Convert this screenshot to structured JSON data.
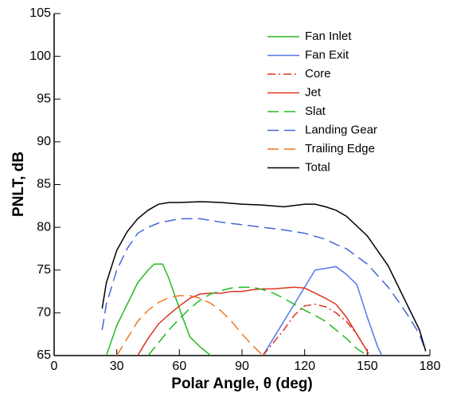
{
  "chart_data": {
    "type": "line",
    "xlabel": "Polar Angle, θ (deg)",
    "ylabel": "PNLT, dB",
    "xlim": [
      0,
      180
    ],
    "ylim": [
      65,
      105
    ],
    "xticks": [
      0,
      30,
      60,
      90,
      120,
      150,
      180
    ],
    "yticks": [
      65,
      70,
      75,
      80,
      85,
      90,
      95,
      100,
      105
    ],
    "legend": "upper right",
    "series": [
      {
        "name": "Fan Inlet",
        "color": "#22bb22",
        "dash": "solid",
        "x": [
          25,
          30,
          35,
          40,
          45,
          48,
          52,
          55,
          60,
          65,
          70,
          75
        ],
        "values": [
          65,
          68.5,
          71,
          73.5,
          75,
          75.7,
          75.7,
          74,
          70.5,
          67.2,
          66,
          65
        ]
      },
      {
        "name": "Fan Exit",
        "color": "#5577ee",
        "dash": "solid",
        "x": [
          100,
          105,
          110,
          115,
          120,
          125,
          130,
          135,
          140,
          145,
          150,
          155,
          157
        ],
        "values": [
          65,
          67,
          69,
          71,
          73,
          75,
          75.2,
          75.4,
          74.5,
          73.3,
          69.5,
          66,
          65
        ]
      },
      {
        "name": "Core",
        "color": "#dd3322",
        "dash": "dashdot",
        "x": [
          100,
          105,
          110,
          115,
          120,
          125,
          130,
          135,
          140,
          145,
          150,
          151
        ],
        "values": [
          65,
          66.5,
          68,
          69.7,
          70.8,
          71,
          70.7,
          70,
          69,
          67.5,
          65.5,
          65
        ]
      },
      {
        "name": "Jet",
        "color": "#dd3322",
        "dash": "solid",
        "x": [
          40,
          45,
          50,
          55,
          60,
          65,
          70,
          75,
          80,
          85,
          90,
          95,
          100,
          105,
          110,
          115,
          120,
          125,
          130,
          135,
          140,
          145,
          150
        ],
        "values": [
          65,
          67,
          68.7,
          69.8,
          70.8,
          71.7,
          72.2,
          72.3,
          72.3,
          72.5,
          72.5,
          72.7,
          72.8,
          72.8,
          72.9,
          73,
          72.9,
          72.3,
          71.7,
          71,
          69.5,
          67.5,
          65.5
        ]
      },
      {
        "name": "Slat",
        "color": "#22bb22",
        "dash": "dashed",
        "x": [
          45,
          50,
          55,
          60,
          65,
          70,
          75,
          80,
          85,
          90,
          95,
          100,
          105,
          110,
          115,
          120,
          125,
          130,
          135,
          140,
          145,
          150
        ],
        "values": [
          65,
          66.5,
          68,
          69.3,
          70.5,
          71.5,
          72.2,
          72.6,
          72.9,
          73,
          73,
          72.7,
          72.3,
          71.7,
          71,
          70.3,
          69.7,
          69,
          68,
          67,
          65.8,
          65
        ]
      },
      {
        "name": "Landing Gear",
        "color": "#4466dd",
        "dash": "dashed",
        "x": [
          23,
          25,
          30,
          35,
          40,
          45,
          50,
          60,
          70,
          80,
          90,
          100,
          110,
          120,
          130,
          135,
          140,
          150,
          160,
          165,
          170,
          175,
          178
        ],
        "values": [
          68,
          71,
          75,
          77.5,
          79.3,
          80,
          80.5,
          81,
          81,
          80.6,
          80.3,
          80,
          79.7,
          79.3,
          78.6,
          78,
          77.5,
          75.7,
          73,
          71.3,
          69.5,
          67.5,
          65.5
        ]
      },
      {
        "name": "Trailing Edge",
        "color": "#ee7722",
        "dash": "dashed",
        "x": [
          30,
          35,
          40,
          45,
          50,
          55,
          60,
          65,
          70,
          75,
          80,
          85,
          90,
          95,
          100
        ],
        "values": [
          65,
          67,
          69,
          70.3,
          71.2,
          71.8,
          72,
          72,
          71.7,
          71.1,
          70.2,
          69,
          67.5,
          66.2,
          65
        ]
      },
      {
        "name": "Total",
        "color": "#000000",
        "dash": "solid",
        "x": [
          23,
          25,
          30,
          35,
          40,
          45,
          50,
          55,
          60,
          70,
          80,
          90,
          100,
          110,
          120,
          125,
          130,
          135,
          140,
          150,
          160,
          170,
          175,
          178
        ],
        "values": [
          70.5,
          73.5,
          77.3,
          79.5,
          81,
          82,
          82.7,
          82.9,
          82.9,
          83,
          82.9,
          82.7,
          82.6,
          82.4,
          82.7,
          82.7,
          82.4,
          82,
          81.3,
          79,
          75.5,
          70.5,
          68,
          65.5
        ]
      }
    ]
  }
}
